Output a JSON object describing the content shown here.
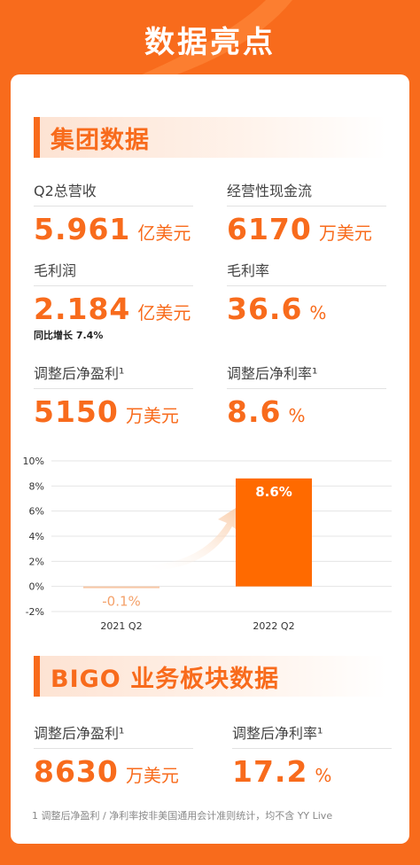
{
  "title": "数据亮点",
  "group": {
    "heading": "集团数据",
    "metrics": [
      {
        "label": "Q2总营收",
        "value": "5.961",
        "unit": "亿美元"
      },
      {
        "label": "经营性现金流",
        "value": "6170",
        "unit": "万美元"
      },
      {
        "label": "毛利润",
        "value": "2.184",
        "unit": "亿美元",
        "note": "同比增长 7.4%"
      },
      {
        "label": "毛利率",
        "value": "36.6",
        "unit": "%"
      },
      {
        "label": "调整后净盈利¹",
        "value": "5150",
        "unit": "万美元"
      },
      {
        "label": "调整后净利率¹",
        "value": "8.6",
        "unit": "%"
      }
    ]
  },
  "chart_data": {
    "type": "bar",
    "categories": [
      "2021 Q2",
      "2022 Q2"
    ],
    "values": [
      -0.1,
      8.6
    ],
    "value_labels": [
      "-0.1%",
      "8.6%"
    ],
    "ylim": [
      -2,
      10
    ],
    "yticks": [
      "-2%",
      "0%",
      "2%",
      "4%",
      "6%",
      "8%",
      "10%"
    ],
    "ytick_values": [
      -2,
      0,
      2,
      4,
      6,
      8,
      10
    ],
    "grid": true,
    "colors": {
      "bar_low": "#f7c7a6",
      "bar_high": "#ff6a00",
      "label_low": "#f4a16a",
      "label_high": "#ffffff"
    }
  },
  "bigo": {
    "heading": "BIGO 业务板块数据",
    "metrics": [
      {
        "label": "调整后净盈利¹",
        "value": "8630",
        "unit": "万美元"
      },
      {
        "label": "调整后净利率¹",
        "value": "17.2",
        "unit": "%"
      }
    ]
  },
  "footnote": "1  调整后净盈利 / 净利率按非美国通用会计准则统计，均不含 YY Live",
  "colors": {
    "accent": "#f86b1c",
    "background": "#f86b1c"
  }
}
